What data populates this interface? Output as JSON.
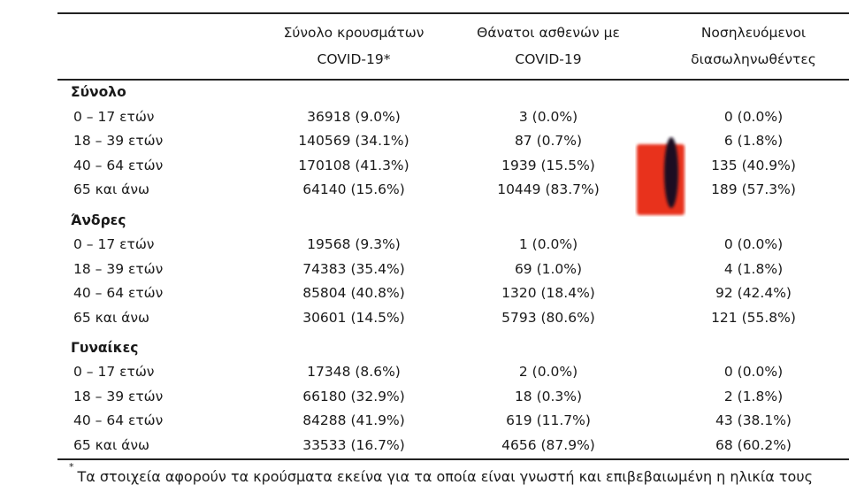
{
  "header": {
    "col1_line1": "Σύνολο κρουσμάτων",
    "col1_line2": "COVID-19*",
    "col2_line1": "Θάνατοι ασθενών με",
    "col2_line2": "COVID-19",
    "col3_line1": "Νοσηλευόμενοι",
    "col3_line2": "διασωληνωθέντες"
  },
  "groups": [
    {
      "title": "Σύνολο",
      "rows": [
        {
          "age": "0 – 17 ετών",
          "cases": "36918 (9.0%)",
          "deaths": "3 (0.0%)",
          "intubated": "0 (0.0%)"
        },
        {
          "age": "18 – 39 ετών",
          "cases": "140569 (34.1%)",
          "deaths": "87 (0.7%)",
          "intubated": "6 (1.8%)"
        },
        {
          "age": "40 – 64 ετών",
          "cases": "170108 (41.3%)",
          "deaths": "1939 (15.5%)",
          "intubated": "135 (40.9%)"
        },
        {
          "age": "65 και άνω",
          "cases": "64140 (15.6%)",
          "deaths": "10449 (83.7%)",
          "intubated": "189 (57.3%)"
        }
      ]
    },
    {
      "title": "Άνδρες",
      "rows": [
        {
          "age": "0 – 17 ετών",
          "cases": "19568 (9.3%)",
          "deaths": "1 (0.0%)",
          "intubated": "0 (0.0%)"
        },
        {
          "age": "18 – 39 ετών",
          "cases": "74383 (35.4%)",
          "deaths": "69 (1.0%)",
          "intubated": "4 (1.8%)"
        },
        {
          "age": "40 – 64 ετών",
          "cases": "85804 (40.8%)",
          "deaths": "1320 (18.4%)",
          "intubated": "92 (42.4%)"
        },
        {
          "age": "65 και άνω",
          "cases": "30601 (14.5%)",
          "deaths": "5793 (80.6%)",
          "intubated": "121 (55.8%)"
        }
      ]
    },
    {
      "title": "Γυναίκες",
      "rows": [
        {
          "age": "0 – 17 ετών",
          "cases": "17348 (8.6%)",
          "deaths": "2 (0.0%)",
          "intubated": "0 (0.0%)"
        },
        {
          "age": "18 – 39 ετών",
          "cases": "66180 (32.9%)",
          "deaths": "18 (0.3%)",
          "intubated": "2 (1.8%)"
        },
        {
          "age": "40 – 64 ετών",
          "cases": "84288 (41.9%)",
          "deaths": "619 (11.7%)",
          "intubated": "43 (38.1%)"
        },
        {
          "age": "65 και άνω",
          "cases": "33533 (16.7%)",
          "deaths": "4656 (87.9%)",
          "intubated": "68 (60.2%)"
        }
      ]
    }
  ],
  "footnote": {
    "marker": "*",
    "text": "Τα στοιχεία αφορούν τα κρούσματα εκείνα για τα οποία είναι γνωστή και επιβεβαιωμένη η ηλικία τους"
  },
  "colors": {
    "blot_red": "#e8321c",
    "blot_dark": "#1b1020"
  }
}
